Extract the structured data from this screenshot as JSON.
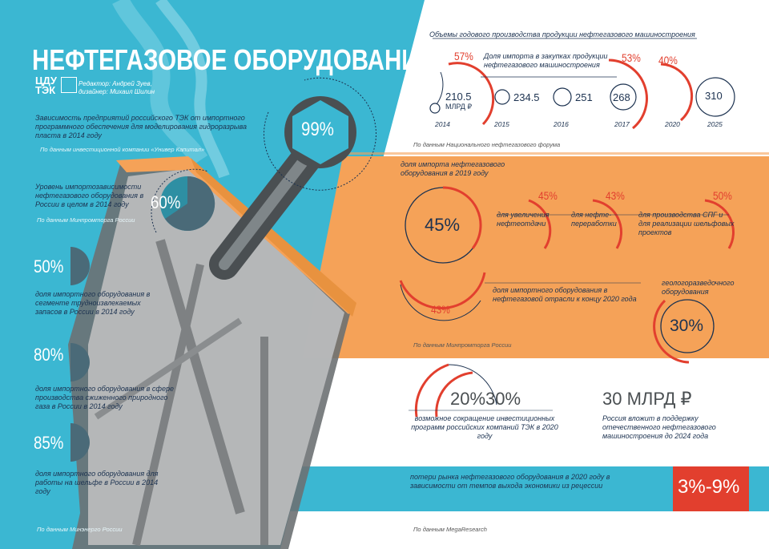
{
  "header": {
    "title": "НЕФТЕГАЗОВОЕ ОБОРУДОВАНИЕ",
    "logo_line1": "ЦДУ",
    "logo_line2": "ТЭК",
    "credits_line1": "Редактор: Андрей Зуев,",
    "credits_line2": "дизайнер: Михаил Шилин"
  },
  "left": {
    "stat1_text": "Зависимость предприятий российского ТЭК от импортного программного обеспечения для моделирования гидроразрыва пласта в 2014 году",
    "stat1_value": "99%",
    "stat1_source": "По данным инвестиционной компании «Универ Капитал»",
    "stat2_text": "Уровень импортозависимости нефтегазового оборудования в России в целом в 2014 году",
    "stat2_value": "60%",
    "stat2_source": "По данным Минпромторга России",
    "stat3_value": "50%",
    "stat3_text": "доля импортного оборудования в сегменте трудноизвлекаемых запасов в России в 2014 году",
    "stat4_value": "80%",
    "stat4_text": "доля импортного оборудования в сфере производства сжиженного природного газа в России в 2014 году",
    "stat5_value": "85%",
    "stat5_text": "доля импортного оборудования для работы на шельфе в России в 2014 году",
    "source_bottom": "По данным Минэнерго России"
  },
  "production": {
    "title": "Объемы годового производства продукции нефтегазового машиностроения",
    "import_share_label": "Доля импорта в закупках продукции нефтегазового машиностроения",
    "unit": "МЛРД ₽",
    "years": [
      {
        "year": "2014",
        "value": "210.5",
        "import": "57%"
      },
      {
        "year": "2015",
        "value": "234.5"
      },
      {
        "year": "2016",
        "value": "251"
      },
      {
        "year": "2017",
        "value": "268",
        "import": "53%"
      },
      {
        "year": "2020",
        "value": "",
        "import": "40%"
      },
      {
        "year": "2025",
        "value": "310"
      }
    ],
    "source": "По данным Национального нефтегазового форума"
  },
  "import2019": {
    "title": "доля импорта нефтегазового оборудования в 2019 году",
    "total": "45%",
    "items": [
      {
        "value": "45%",
        "label": "для увеличения нефтеотдачи"
      },
      {
        "value": "43%",
        "label": "для нефте-переработки"
      },
      {
        "value": "50%",
        "label": "для производства СПГ и для реализации шельфовых проектов"
      }
    ],
    "forecast_value": "43%",
    "forecast_text": "доля импортного оборудования в нефтегазовой отрасли к концу 2020 года",
    "geo_text": "геологоразведочного оборудования",
    "geo_value": "30%",
    "source": "По данным Минпромторга России"
  },
  "invest": {
    "value": "20%30%",
    "text": "возможное сокращение инвестиционных программ российских компаний ТЭК в 2020 году",
    "support_value": "30 МЛРД ₽",
    "support_text": "Россия вложит в поддержку отечественного нефтегазового машиностроения до 2024 года"
  },
  "loss": {
    "text": "потери рынка нефтегазового оборудования в 2020 году в зависимости от темпов выхода экономики из рецессии",
    "value": "3%-9%",
    "source": "По данным MegaResearch"
  },
  "colors": {
    "cyan": "#3bb7d2",
    "orange": "#f5a258",
    "red": "#e23f2e",
    "navy": "#1c3250",
    "teal_dark": "#2e8fa3"
  }
}
